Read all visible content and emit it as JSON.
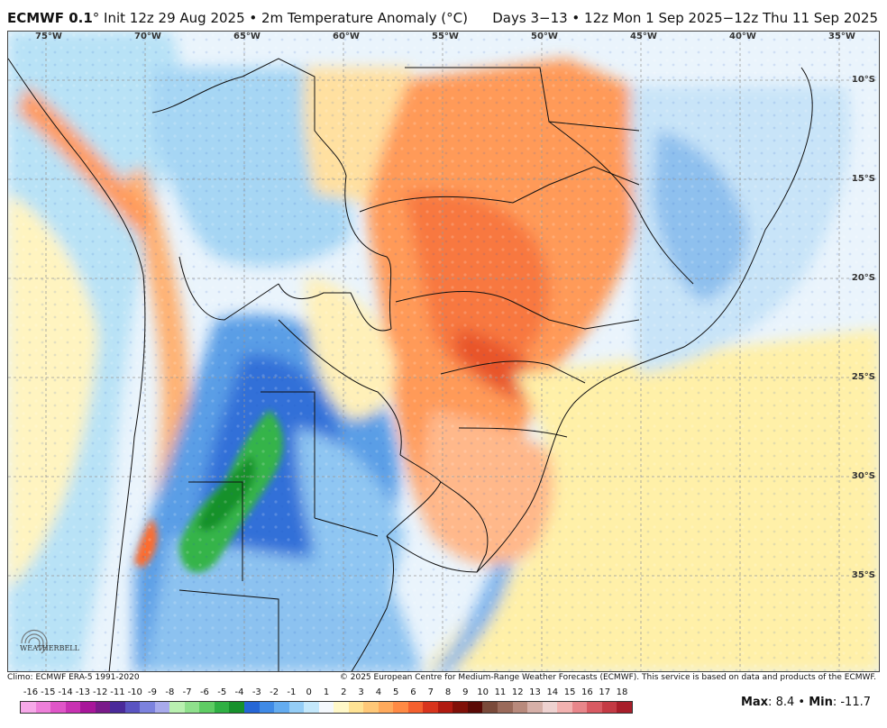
{
  "header": {
    "model": "ECMWF 0.1",
    "init": "° Init 12z 29 Aug 2025 • 2m Temperature Anomaly (°C)",
    "valid": "Days 3−13 • 12z Mon 1 Sep 2025−12z Thu 11 Sep 2025"
  },
  "map": {
    "lon_labels": [
      "75°W",
      "70°W",
      "65°W",
      "60°W",
      "55°W",
      "50°W",
      "45°W",
      "40°W",
      "35°W"
    ],
    "lat_labels": [
      "10°S",
      "15°S",
      "20°S",
      "25°S",
      "30°S",
      "35°S"
    ],
    "grid_color": "#999999",
    "border_color": "#111111"
  },
  "footer": {
    "climo": "Climo: ECMWF ERA-5 1991-2020",
    "copyright": "© 2025 European Centre for Medium-Range Weather Forecasts (ECMWF). This service is based on data and products of the ECMWF."
  },
  "colorbar": {
    "ticks": [
      "-16",
      "-15",
      "-14",
      "-13",
      "-12",
      "-11",
      "-10",
      "-9",
      "-8",
      "-7",
      "-6",
      "-5",
      "-4",
      "-3",
      "-2",
      "-1",
      "0",
      "1",
      "2",
      "3",
      "4",
      "5",
      "6",
      "7",
      "8",
      "9",
      "10",
      "11",
      "12",
      "13",
      "14",
      "15",
      "16",
      "17",
      "18"
    ],
    "colors": [
      "#f6a8e8",
      "#ee7fd9",
      "#e055c8",
      "#c831b2",
      "#a8169a",
      "#7a1a8a",
      "#4a2a9a",
      "#5a54c2",
      "#7c82de",
      "#a8aaec",
      "#b9f0b0",
      "#8fe08c",
      "#5ecc63",
      "#2fb043",
      "#17912c",
      "#2566d6",
      "#3f8ae6",
      "#64acf0",
      "#94cdf6",
      "#c4e8fb",
      "#f4f8fc",
      "#fff8c8",
      "#ffe394",
      "#ffc878",
      "#ffaa5c",
      "#ff8a44",
      "#f4602e",
      "#d8341c",
      "#b01a10",
      "#801008",
      "#5a0a06",
      "#7a4a3a",
      "#9a6a5a",
      "#b88a7c",
      "#d6b0a8",
      "#eed2d0",
      "#f2b2b0",
      "#e8868a",
      "#d85a62",
      "#c43a44",
      "#a81e2a"
    ],
    "max_label": "Max",
    "max_value": "8.4",
    "min_label": "Min",
    "min_value": "-11.7",
    "sep": " • "
  },
  "logo": {
    "text": "WEATHERBELL"
  }
}
